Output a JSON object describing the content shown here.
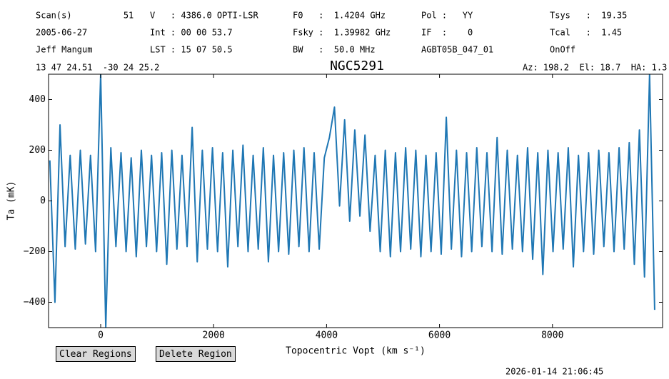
{
  "header": {
    "columns": [
      [
        "Scan(s)          51",
        "2005-06-27",
        "Jeff Mangum"
      ],
      [
        "V   : 4386.0 OPTI-LSR",
        "Int : 00 00 53.7",
        "LST : 15 07 50.5"
      ],
      [
        "F0   :  1.4204 GHz",
        "Fsky :  1.39982 GHz",
        "BW   :  50.0 MHz"
      ],
      [
        "Pol :   YY",
        "IF  :    0",
        "AGBT05B_047_01"
      ],
      [
        "Tsys   :  19.35",
        "Tcal   :  1.45",
        "OnOff"
      ]
    ],
    "coords": "13 47 24.51  -30 24 25.2",
    "pointing": "Az: 198.2  El: 18.7  HA: 1.3"
  },
  "chart_data": {
    "type": "line",
    "title": "NGC5291",
    "xlabel": "Topocentric Vopt (km s⁻¹)",
    "ylabel": "Ta (mK)",
    "x": [
      -900,
      -810,
      -720,
      -630,
      -540,
      -450,
      -360,
      -270,
      -180,
      -90,
      0,
      90,
      180,
      270,
      360,
      450,
      540,
      630,
      720,
      810,
      900,
      990,
      1080,
      1170,
      1260,
      1350,
      1440,
      1530,
      1620,
      1710,
      1800,
      1890,
      1980,
      2070,
      2160,
      2250,
      2340,
      2430,
      2520,
      2610,
      2700,
      2790,
      2880,
      2970,
      3060,
      3150,
      3240,
      3330,
      3420,
      3510,
      3600,
      3690,
      3780,
      3870,
      3960,
      4050,
      4140,
      4230,
      4320,
      4410,
      4500,
      4590,
      4680,
      4770,
      4860,
      4950,
      5040,
      5130,
      5220,
      5310,
      5400,
      5490,
      5580,
      5670,
      5760,
      5850,
      5940,
      6030,
      6120,
      6210,
      6300,
      6390,
      6480,
      6570,
      6660,
      6750,
      6840,
      6930,
      7020,
      7110,
      7200,
      7290,
      7380,
      7470,
      7560,
      7650,
      7740,
      7830,
      7920,
      8010,
      8100,
      8190,
      8280,
      8370,
      8460,
      8550,
      8640,
      8730,
      8820,
      8910,
      9000,
      9090,
      9180,
      9270,
      9360,
      9450,
      9540,
      9630,
      9720,
      9810
    ],
    "series": [
      {
        "name": "Ta",
        "color": "#1f77b4",
        "values": [
          160,
          -400,
          300,
          -180,
          180,
          -190,
          200,
          -170,
          180,
          -200,
          500,
          -500,
          210,
          -180,
          190,
          -200,
          170,
          -220,
          200,
          -180,
          180,
          -200,
          190,
          -250,
          200,
          -190,
          180,
          -180,
          290,
          -240,
          200,
          -190,
          210,
          -200,
          190,
          -260,
          200,
          -180,
          220,
          -200,
          180,
          -190,
          210,
          -240,
          180,
          -200,
          190,
          -210,
          200,
          -180,
          210,
          -200,
          190,
          -190,
          170,
          250,
          370,
          -20,
          320,
          -80,
          280,
          -60,
          260,
          -120,
          180,
          -200,
          200,
          -220,
          190,
          -200,
          210,
          -190,
          200,
          -220,
          180,
          -200,
          190,
          -210,
          330,
          -190,
          200,
          -220,
          190,
          -200,
          210,
          -180,
          190,
          -200,
          250,
          -210,
          200,
          -190,
          180,
          -200,
          210,
          -230,
          190,
          -290,
          200,
          -200,
          190,
          -190,
          210,
          -260,
          180,
          -200,
          190,
          -210,
          200,
          -180,
          190,
          -200,
          210,
          -190,
          230,
          -250,
          280,
          -300,
          500,
          -430
        ]
      }
    ],
    "xlim": [
      -923,
      9950
    ],
    "ylim": [
      -500,
      500
    ],
    "xticks": [
      0,
      2000,
      4000,
      6000,
      8000
    ],
    "yticks": [
      {
        "value": -400,
        "label": "−400"
      },
      {
        "value": -200,
        "label": "−200"
      },
      0,
      200,
      400
    ]
  },
  "buttons": [
    "Clear Regions",
    "Delete Region"
  ],
  "timestamp": "2026-01-14 21:06:45"
}
